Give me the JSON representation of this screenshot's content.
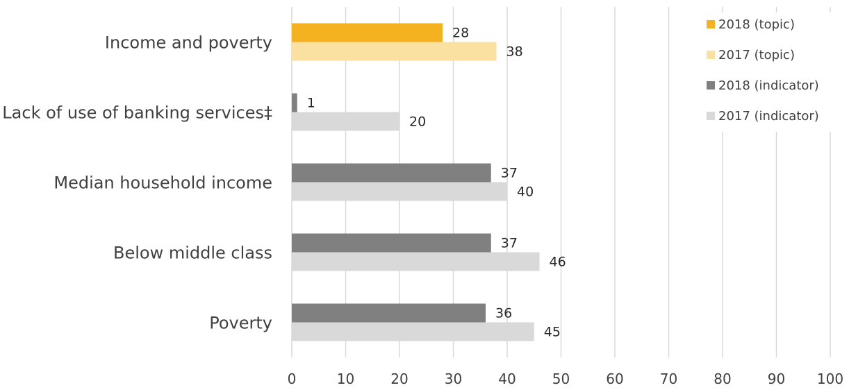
{
  "chart_data": {
    "type": "bar",
    "orientation": "horizontal",
    "categories": [
      "Income and poverty",
      "Lack of use of banking services‡",
      "Median household income",
      "Below middle class",
      "Poverty"
    ],
    "series": [
      {
        "name": "2018 (topic)",
        "color": "#f4b120",
        "values": [
          28,
          null,
          null,
          null,
          null
        ],
        "labels": [
          "28",
          null,
          null,
          null,
          null
        ]
      },
      {
        "name": "2017 (topic)",
        "color": "#fbe1a1",
        "values": [
          38,
          null,
          null,
          null,
          null
        ],
        "labels": [
          "38",
          null,
          null,
          null,
          null
        ]
      },
      {
        "name": "2018 (indicator)",
        "color": "#808080",
        "values": [
          null,
          1,
          37,
          37,
          36
        ],
        "labels": [
          null,
          "1",
          "37",
          "37",
          "36"
        ]
      },
      {
        "name": "2017 (indicator)",
        "color": "#d9d9d9",
        "values": [
          null,
          20,
          40,
          46,
          45
        ],
        "labels": [
          null,
          "20",
          "40",
          "46",
          "45"
        ]
      }
    ],
    "xlim": [
      0,
      100
    ],
    "x_ticks": [
      "0",
      "10",
      "20",
      "30",
      "40",
      "50",
      "60",
      "70",
      "80",
      "90",
      "100"
    ],
    "grid": true,
    "legend_position": "top-right"
  }
}
